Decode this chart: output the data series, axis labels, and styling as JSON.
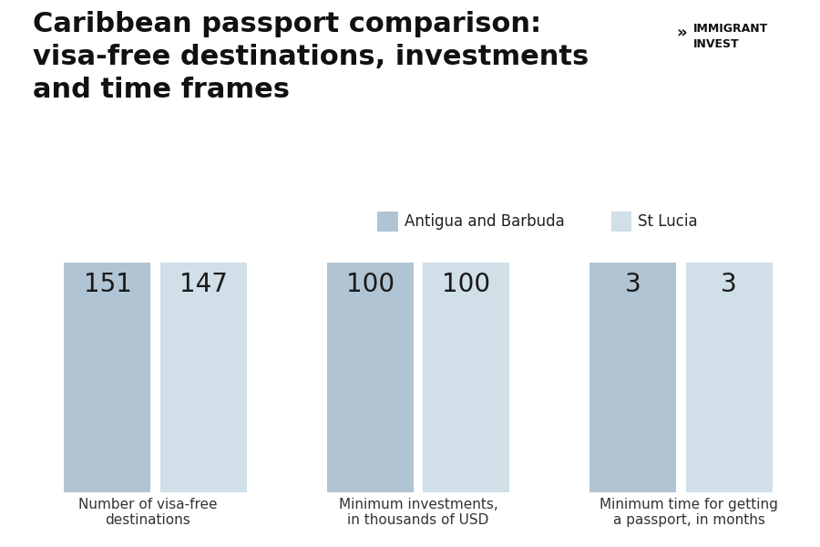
{
  "title": "Caribbean passport comparison:\nvisa-free destinations, investments\nand time frames",
  "categories": [
    "Number of visa-free\ndestinations",
    "Minimum investments,\nin thousands of USD",
    "Minimum time for getting\na passport, in months"
  ],
  "antigua_values": [
    151,
    100,
    3
  ],
  "stlucia_values": [
    147,
    100,
    3
  ],
  "antigua_labels": [
    "151",
    "100",
    "3"
  ],
  "stlucia_labels": [
    "147",
    "100",
    "3"
  ],
  "antigua_color": "#b0c4d4",
  "stlucia_color": "#d0dfe8",
  "legend_antigua": "Antigua and Barbuda",
  "legend_stlucia": "St Lucia",
  "background_color": "#ffffff",
  "title_fontsize": 22,
  "value_fontsize": 20,
  "category_fontsize": 11,
  "legend_fontsize": 12,
  "brand_text": "IMMIGRANT\nINVEST",
  "brand_fontsize": 9
}
